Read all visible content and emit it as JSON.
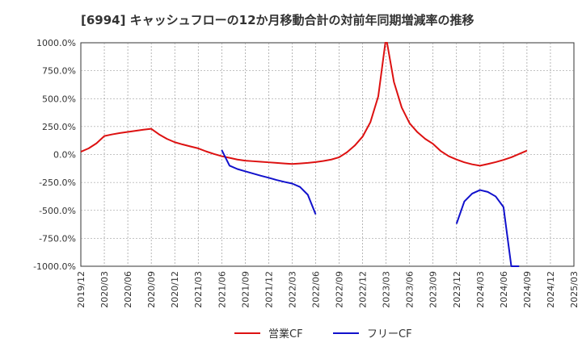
{
  "chart_data": {
    "type": "line",
    "title": "[6994]  キャッシュフローの12か月移動合計の対前年同期増減率の推移",
    "xlabel": "",
    "ylabel": "",
    "ylim": [
      -1000,
      1000
    ],
    "y_ticks": [
      1000,
      750,
      500,
      250,
      0,
      -250,
      -500,
      -750,
      -1000
    ],
    "y_tick_labels": [
      "1000.0%",
      "750.0%",
      "500.0%",
      "250.0%",
      "0.0%",
      "-250.0%",
      "-500.0%",
      "-750.0%",
      "-1000.0%"
    ],
    "x_ticks": [
      "2019/12",
      "2020/03",
      "2020/06",
      "2020/09",
      "2020/12",
      "2021/03",
      "2021/06",
      "2021/09",
      "2021/12",
      "2022/03",
      "2022/06",
      "2022/09",
      "2022/12",
      "2023/03",
      "2023/06",
      "2023/09",
      "2023/12",
      "2024/03",
      "2024/06",
      "2024/09",
      "2024/12",
      "2025/03"
    ],
    "grid": true,
    "legend_position": "bottom",
    "series": [
      {
        "name": "営業CF",
        "color": "#dd1111",
        "x": [
          0,
          1,
          2,
          3,
          4,
          5,
          6,
          7,
          8,
          9,
          10,
          11,
          12,
          13,
          14,
          15,
          16,
          17,
          18,
          19,
          20,
          21,
          22,
          23,
          24,
          25,
          26,
          27,
          28,
          29,
          30,
          31,
          32,
          33,
          34,
          35,
          36,
          37,
          38,
          39,
          40,
          41,
          42,
          43,
          44,
          45,
          46,
          47,
          48,
          49,
          50,
          51,
          52,
          53,
          54,
          55,
          56,
          57
        ],
        "values": [
          25,
          55,
          100,
          165,
          180,
          192,
          202,
          212,
          222,
          230,
          180,
          140,
          110,
          90,
          72,
          55,
          28,
          5,
          -15,
          -30,
          -45,
          -55,
          -60,
          -65,
          -70,
          -75,
          -80,
          -85,
          -80,
          -75,
          -68,
          -58,
          -45,
          -25,
          20,
          80,
          160,
          290,
          520,
          1050,
          650,
          420,
          280,
          200,
          140,
          95,
          30,
          -15,
          -45,
          -70,
          -88,
          -100,
          -85,
          -68,
          -48,
          -25,
          5,
          35
        ]
      },
      {
        "name": "フリーCF",
        "color": "#1111cc",
        "x": [
          18,
          19,
          20,
          21,
          22,
          23,
          24,
          25,
          26,
          27,
          28,
          29,
          30,
          null,
          48,
          49,
          50,
          51,
          52,
          53,
          54,
          55,
          56
        ],
        "values": [
          40,
          -100,
          -130,
          -150,
          -170,
          -190,
          -208,
          -228,
          -245,
          -260,
          -290,
          -360,
          -535,
          null,
          -620,
          -420,
          -350,
          -318,
          -335,
          -375,
          -470,
          -1000,
          -1000
        ]
      }
    ]
  }
}
